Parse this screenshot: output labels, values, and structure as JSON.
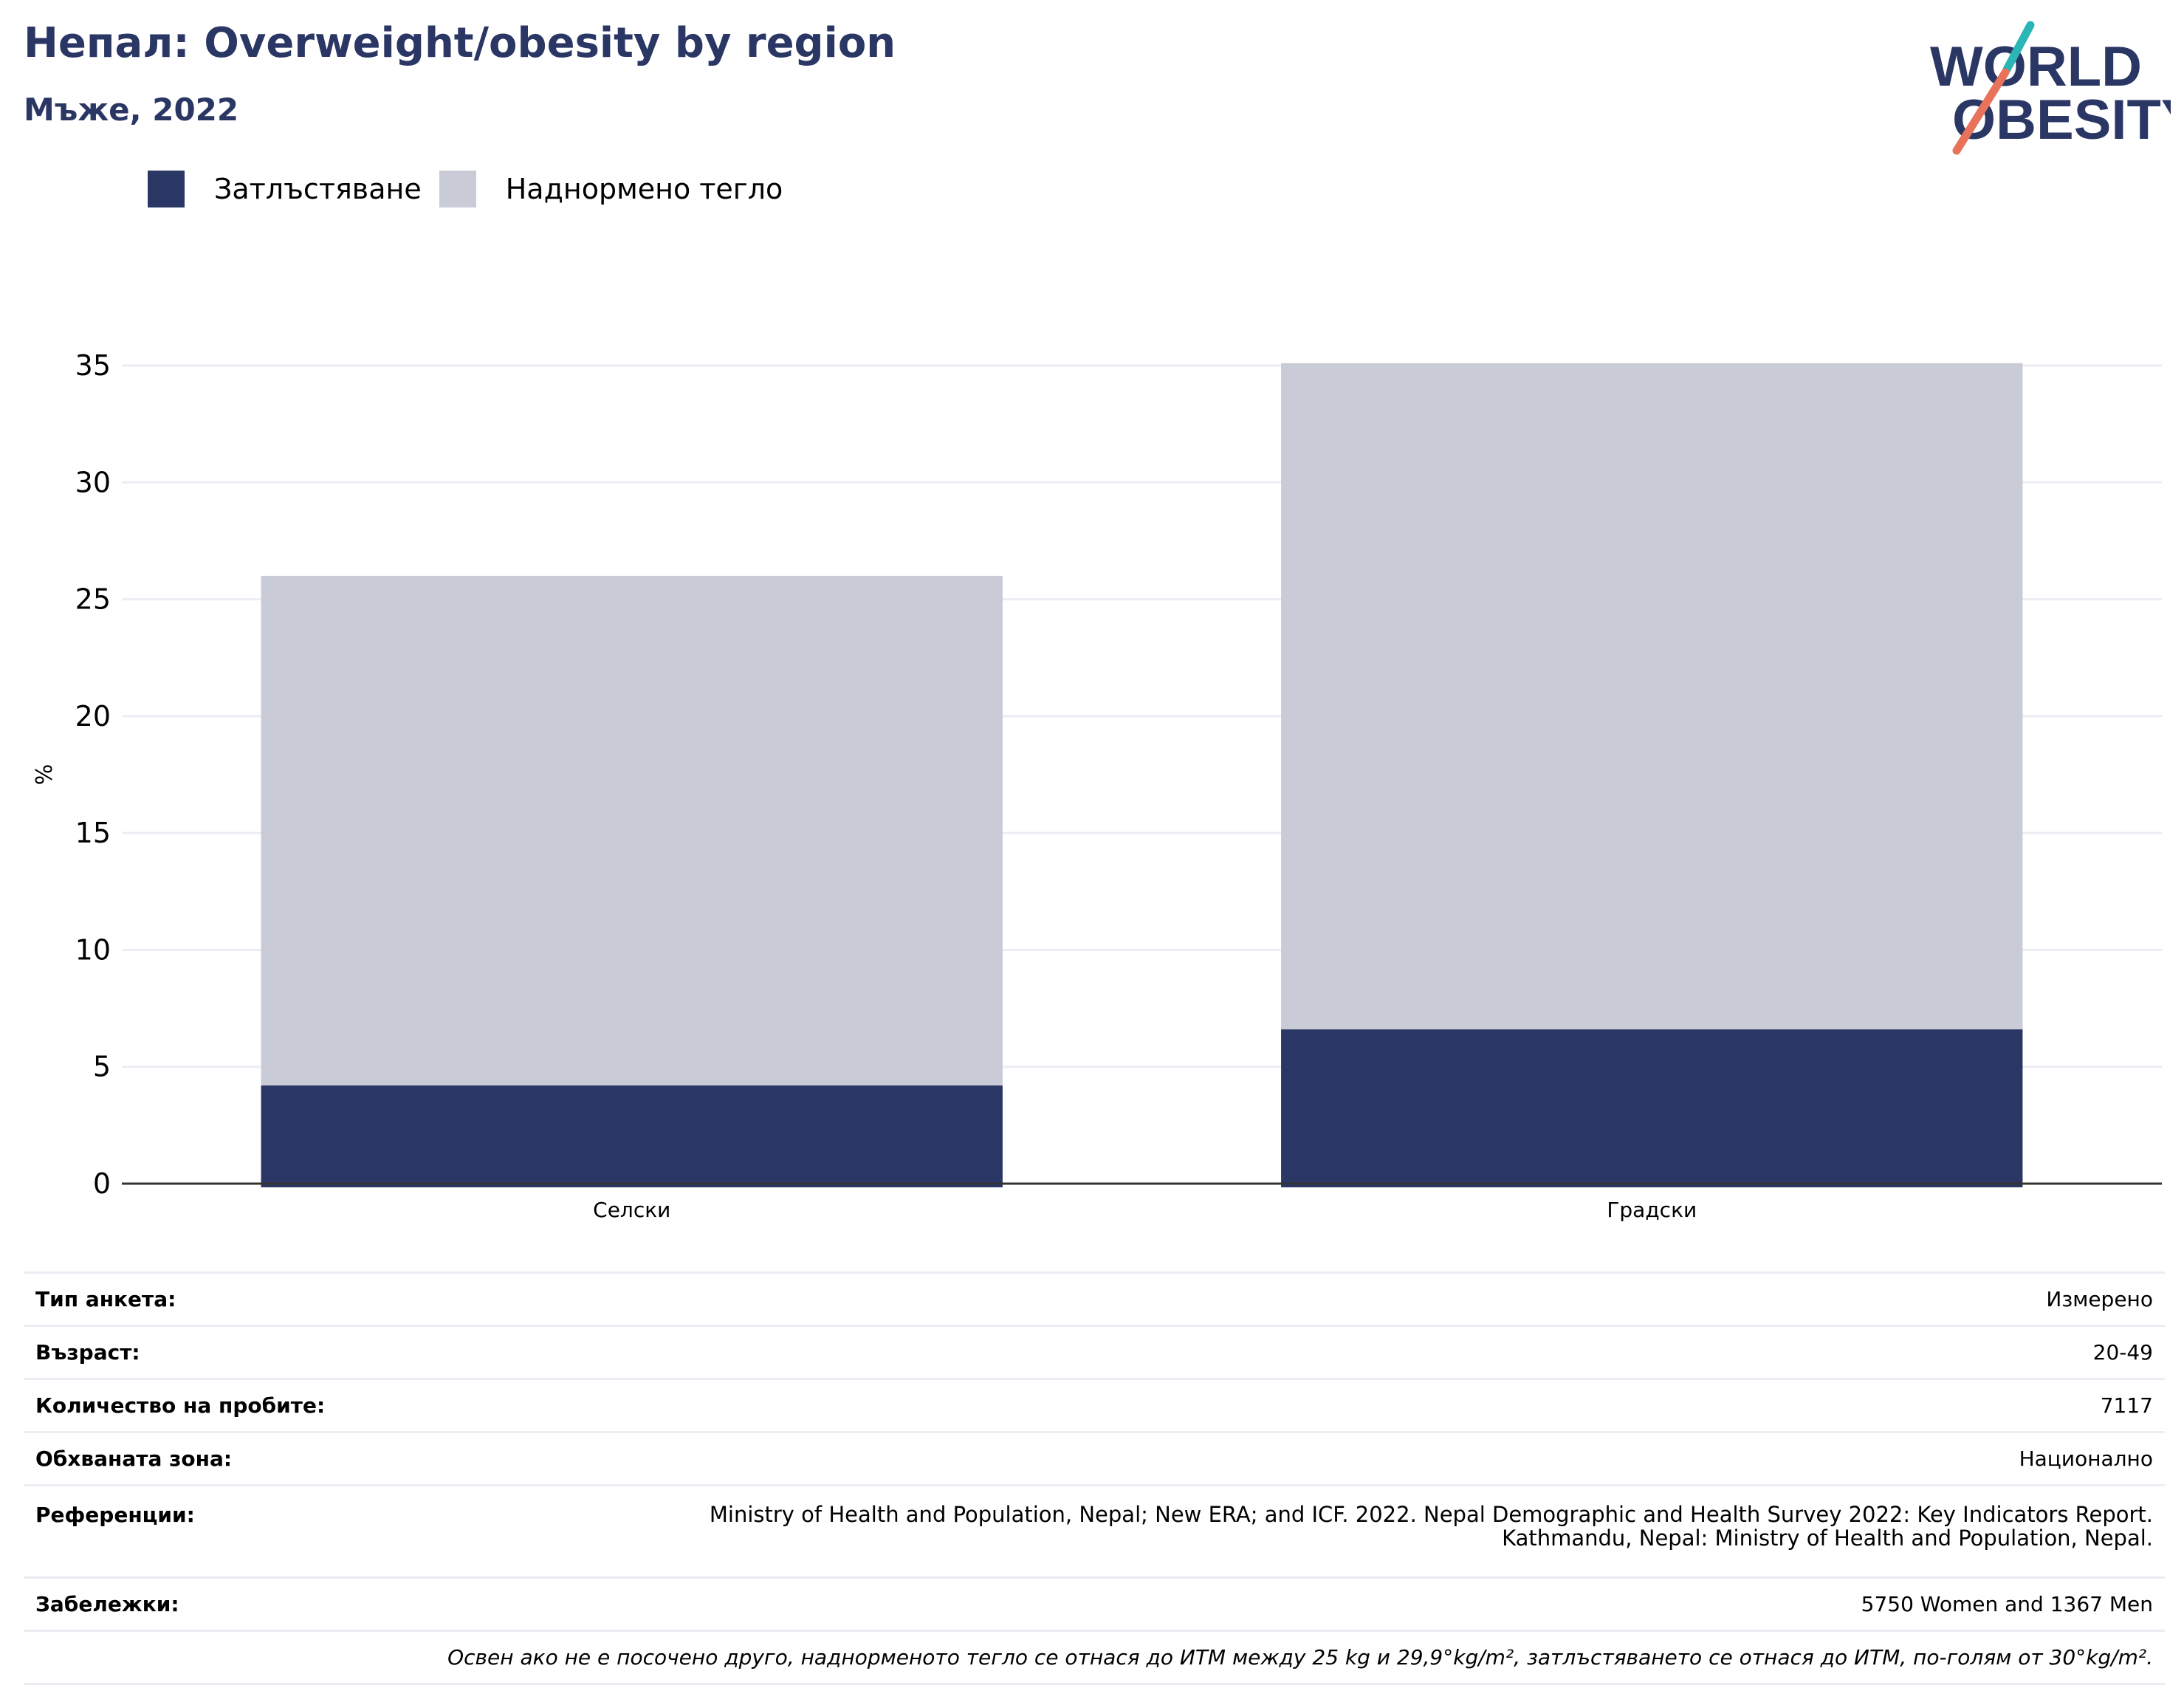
{
  "header": {
    "title": "Непал: Overweight/obesity by region",
    "subtitle": "Мъже, 2022"
  },
  "logo": {
    "line1": "WORLD",
    "line2": "OBESITY",
    "colors": {
      "text": "#2a3664",
      "slash_top": "#2bb5b5",
      "slash_bottom": "#e8735a"
    }
  },
  "chart_data": {
    "type": "bar",
    "stacked": true,
    "categories": [
      "Селски",
      "Градски"
    ],
    "series": [
      {
        "name": "Затлъстяване",
        "values": [
          4.2,
          6.6
        ],
        "color": "#2a3664"
      },
      {
        "name": "Наднормено тегло",
        "values": [
          21.8,
          28.5
        ],
        "color": "#c9cbd6"
      }
    ],
    "ylabel": "%",
    "ylim": [
      0,
      35
    ],
    "yticks": [
      0,
      5,
      10,
      15,
      20,
      25,
      30,
      35
    ],
    "grid": true,
    "legend_position": "top-left"
  },
  "info": {
    "rows": [
      {
        "key": "Тип анкета:",
        "value": "Измерено"
      },
      {
        "key": "Възраст:",
        "value": "20-49"
      },
      {
        "key": "Количество на пробите:",
        "value": "7117"
      },
      {
        "key": "Обхваната зона:",
        "value": "Национално"
      },
      {
        "key": "Референции:",
        "value": "Ministry of Health and Population, Nepal; New ERA; and ICF. 2022. Nepal Demographic and Health Survey 2022: Key Indicators Report. Kathmandu, Nepal: Ministry of Health and Population, Nepal."
      },
      {
        "key": "Забележки:",
        "value": "5750 Women and 1367 Men"
      }
    ],
    "footnote": "Освен ако не е посочено друго, наднорменото тегло се отнася до ИТМ между 25 kg и 29,9°kg/m², затлъстяването се отнася до ИТМ, по-голям от 30°kg/m²."
  }
}
